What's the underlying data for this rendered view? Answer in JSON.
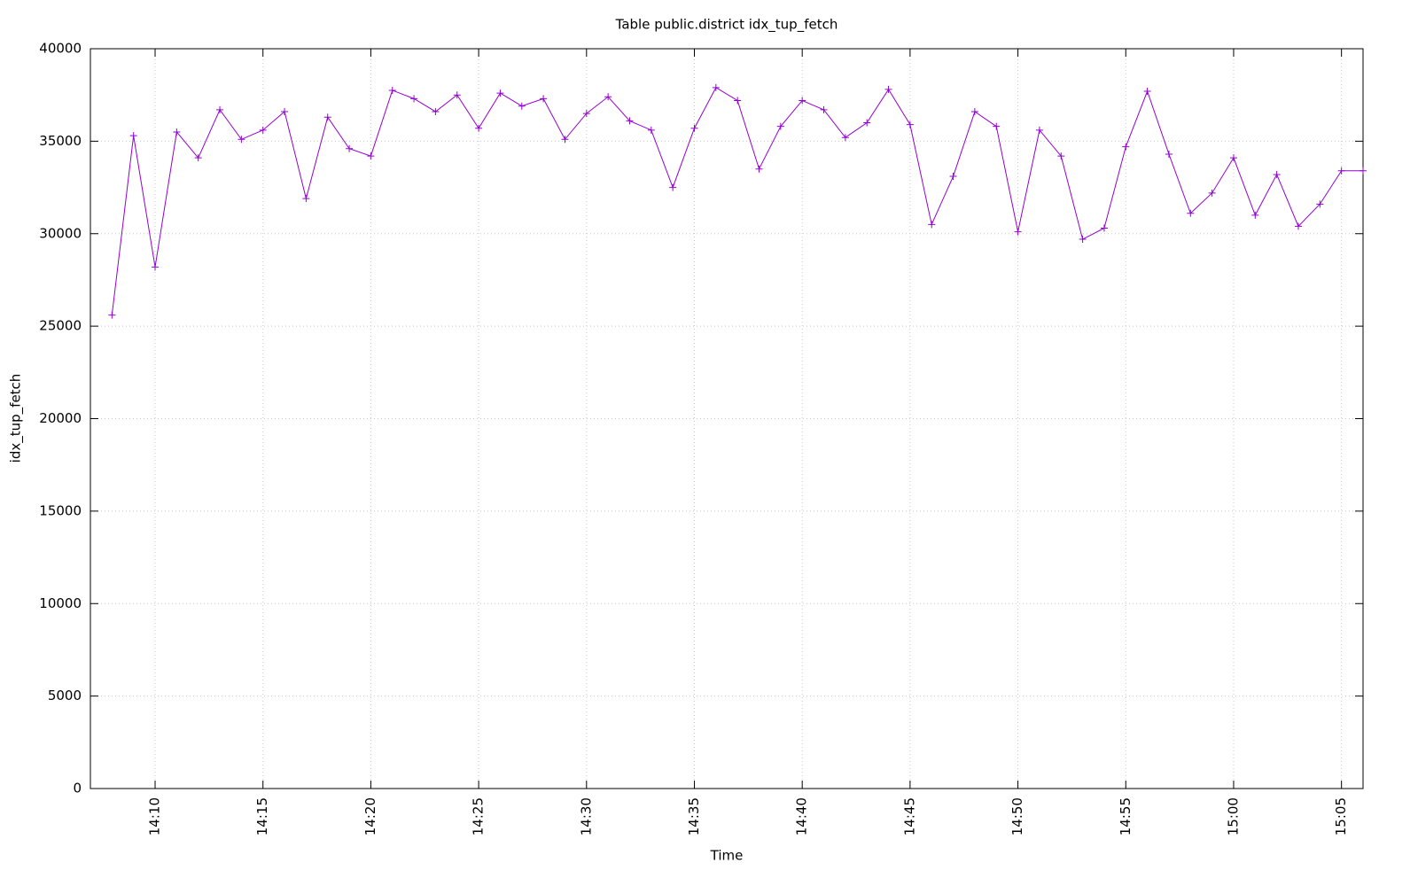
{
  "chart_data": {
    "type": "line",
    "title": "Table public.district idx_tup_fetch",
    "xlabel": "Time",
    "ylabel": "idx_tup_fetch",
    "x": [
      "14:08",
      "14:09",
      "14:10",
      "14:11",
      "14:12",
      "14:13",
      "14:14",
      "14:15",
      "14:16",
      "14:17",
      "14:18",
      "14:19",
      "14:20",
      "14:21",
      "14:22",
      "14:23",
      "14:24",
      "14:25",
      "14:26",
      "14:27",
      "14:28",
      "14:29",
      "14:30",
      "14:31",
      "14:32",
      "14:33",
      "14:34",
      "14:35",
      "14:36",
      "14:37",
      "14:38",
      "14:39",
      "14:40",
      "14:41",
      "14:42",
      "14:43",
      "14:44",
      "14:45",
      "14:46",
      "14:47",
      "14:48",
      "14:49",
      "14:50",
      "14:51",
      "14:52",
      "14:53",
      "14:54",
      "14:55",
      "14:56",
      "14:57",
      "14:58",
      "14:59",
      "15:00",
      "15:01",
      "15:02",
      "15:03",
      "15:04",
      "15:05",
      "15:06"
    ],
    "series": [
      {
        "name": "idx_tup_fetch",
        "color": "#9400d3",
        "values": [
          25600,
          35300,
          28200,
          35500,
          34100,
          36700,
          35100,
          35600,
          36600,
          31900,
          36300,
          34600,
          34200,
          37750,
          37300,
          36600,
          37500,
          35700,
          37600,
          36900,
          37300,
          35100,
          36500,
          37400,
          36100,
          35600,
          32500,
          35700,
          37900,
          37200,
          33500,
          35800,
          37200,
          36700,
          35200,
          36000,
          37800,
          35900,
          30500,
          33100,
          36600,
          35800,
          30100,
          35600,
          34200,
          29700,
          30300,
          34700,
          37700,
          34300,
          31100,
          32200,
          34100,
          31000,
          33200,
          30400,
          31600,
          33400,
          33400
        ]
      }
    ],
    "xlim": [
      "14:07",
      "15:06"
    ],
    "xticks": [
      "14:10",
      "14:15",
      "14:20",
      "14:25",
      "14:30",
      "14:35",
      "14:40",
      "14:45",
      "14:50",
      "14:55",
      "15:00",
      "15:05"
    ],
    "ylim": [
      0,
      40000
    ],
    "yticks": [
      0,
      5000,
      10000,
      15000,
      20000,
      25000,
      30000,
      35000,
      40000
    ],
    "grid": true,
    "marker": "+"
  }
}
